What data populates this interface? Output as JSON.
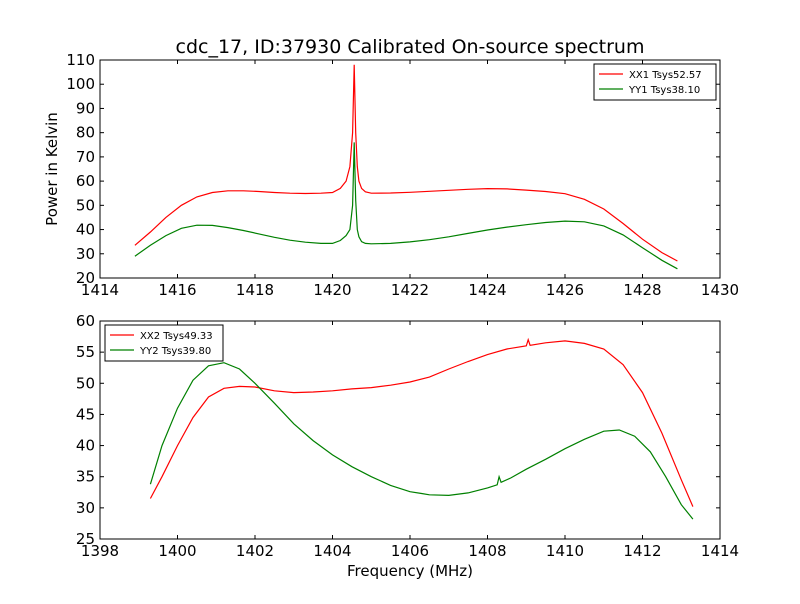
{
  "figure": {
    "title": "cdc_17, ID:37930 Calibrated On-source spectrum"
  },
  "chart_data": [
    {
      "type": "line",
      "title": "cdc_17, ID:37930 Calibrated On-source spectrum",
      "xlabel": "",
      "ylabel": "Power in Kelvin",
      "xlim": [
        1414,
        1430
      ],
      "ylim": [
        20,
        110
      ],
      "xticks": [
        1414,
        1416,
        1418,
        1420,
        1422,
        1424,
        1426,
        1428,
        1430
      ],
      "yticks": [
        20,
        30,
        40,
        50,
        60,
        70,
        80,
        90,
        100,
        110
      ],
      "grid": false,
      "legend_position": "top-right",
      "series": [
        {
          "name": "XX1 Tsys52.57",
          "color": "#ff0000",
          "x": [
            1414.9,
            1415.3,
            1415.7,
            1416.1,
            1416.5,
            1416.9,
            1417.3,
            1417.7,
            1418.1,
            1418.5,
            1418.9,
            1419.3,
            1419.7,
            1420.0,
            1420.2,
            1420.35,
            1420.45,
            1420.52,
            1420.56,
            1420.6,
            1420.64,
            1420.68,
            1420.75,
            1420.85,
            1421.0,
            1421.5,
            1422.0,
            1422.5,
            1423.0,
            1423.5,
            1424.0,
            1424.5,
            1425.0,
            1425.5,
            1426.0,
            1426.5,
            1427.0,
            1427.5,
            1428.0,
            1428.5,
            1428.9
          ],
          "y": [
            33.5,
            39,
            45,
            50,
            53.5,
            55.3,
            56,
            56,
            55.7,
            55.3,
            55,
            54.9,
            55,
            55.3,
            57,
            60,
            66,
            80,
            108,
            80,
            66,
            60,
            57,
            55.6,
            55,
            55.1,
            55.4,
            55.8,
            56.2,
            56.6,
            56.9,
            56.8,
            56.3,
            55.7,
            54.8,
            52.5,
            48.5,
            42.5,
            36,
            30.5,
            27
          ]
        },
        {
          "name": "YY1 Tsys38.10",
          "color": "#008000",
          "x": [
            1414.9,
            1415.3,
            1415.7,
            1416.1,
            1416.5,
            1416.9,
            1417.3,
            1417.7,
            1418.1,
            1418.5,
            1418.9,
            1419.3,
            1419.7,
            1420.0,
            1420.2,
            1420.35,
            1420.45,
            1420.52,
            1420.56,
            1420.6,
            1420.64,
            1420.68,
            1420.75,
            1420.85,
            1421.0,
            1421.5,
            1422.0,
            1422.5,
            1423.0,
            1423.5,
            1424.0,
            1424.5,
            1425.0,
            1425.5,
            1426.0,
            1426.5,
            1427.0,
            1427.5,
            1428.0,
            1428.5,
            1428.9
          ],
          "y": [
            29,
            33.5,
            37.5,
            40.5,
            41.8,
            41.7,
            40.8,
            39.6,
            38.2,
            36.8,
            35.6,
            34.8,
            34.3,
            34.3,
            35.5,
            37.5,
            40,
            50,
            76,
            52,
            40,
            37,
            35,
            34.3,
            34.1,
            34.3,
            34.9,
            35.8,
            37,
            38.4,
            39.8,
            41,
            42,
            42.9,
            43.5,
            43.2,
            41.5,
            37.8,
            32.5,
            27.3,
            23.8
          ]
        }
      ]
    },
    {
      "type": "line",
      "title": "",
      "xlabel": "Frequency (MHz)",
      "ylabel": "",
      "xlim": [
        1398,
        1414
      ],
      "ylim": [
        25,
        60
      ],
      "xticks": [
        1398,
        1400,
        1402,
        1404,
        1406,
        1408,
        1410,
        1412,
        1414
      ],
      "yticks": [
        25,
        30,
        35,
        40,
        45,
        50,
        55,
        60
      ],
      "grid": false,
      "legend_position": "top-left",
      "series": [
        {
          "name": "XX2 Tsys49.33",
          "color": "#ff0000",
          "x": [
            1399.3,
            1399.6,
            1400.0,
            1400.4,
            1400.8,
            1401.2,
            1401.6,
            1402.0,
            1402.5,
            1403.0,
            1403.5,
            1404.0,
            1404.5,
            1405.0,
            1405.5,
            1406.0,
            1406.5,
            1407.0,
            1407.5,
            1408.0,
            1408.5,
            1409.0,
            1409.05,
            1409.1,
            1409.5,
            1410.0,
            1410.5,
            1411.0,
            1411.5,
            1412.0,
            1412.5,
            1413.0,
            1413.3
          ],
          "y": [
            31.5,
            35,
            40,
            44.5,
            47.8,
            49.2,
            49.5,
            49.4,
            48.8,
            48.5,
            48.6,
            48.8,
            49.1,
            49.3,
            49.7,
            50.2,
            51,
            52.3,
            53.5,
            54.6,
            55.5,
            56,
            57,
            56.1,
            56.5,
            56.8,
            56.4,
            55.5,
            53,
            48.5,
            42,
            34.5,
            30.2
          ]
        },
        {
          "name": "YY2 Tsys39.80",
          "color": "#008000",
          "x": [
            1399.3,
            1399.6,
            1400.0,
            1400.4,
            1400.8,
            1401.2,
            1401.6,
            1402.0,
            1402.5,
            1403.0,
            1403.5,
            1404.0,
            1404.5,
            1405.0,
            1405.5,
            1406.0,
            1406.3,
            1406.5,
            1407.0,
            1407.5,
            1408.0,
            1408.25,
            1408.3,
            1408.35,
            1408.6,
            1409.0,
            1409.5,
            1410.0,
            1410.5,
            1411.0,
            1411.4,
            1411.8,
            1412.2,
            1412.6,
            1413.0,
            1413.3
          ],
          "y": [
            33.8,
            40,
            46,
            50.5,
            52.8,
            53.3,
            52.3,
            50,
            46.8,
            43.5,
            40.8,
            38.5,
            36.6,
            35,
            33.6,
            32.6,
            32.3,
            32.1,
            32,
            32.4,
            33.2,
            33.7,
            35,
            34.1,
            34.8,
            36.2,
            37.8,
            39.5,
            41,
            42.3,
            42.5,
            41.5,
            39,
            35,
            30.5,
            28.2
          ]
        }
      ]
    }
  ]
}
